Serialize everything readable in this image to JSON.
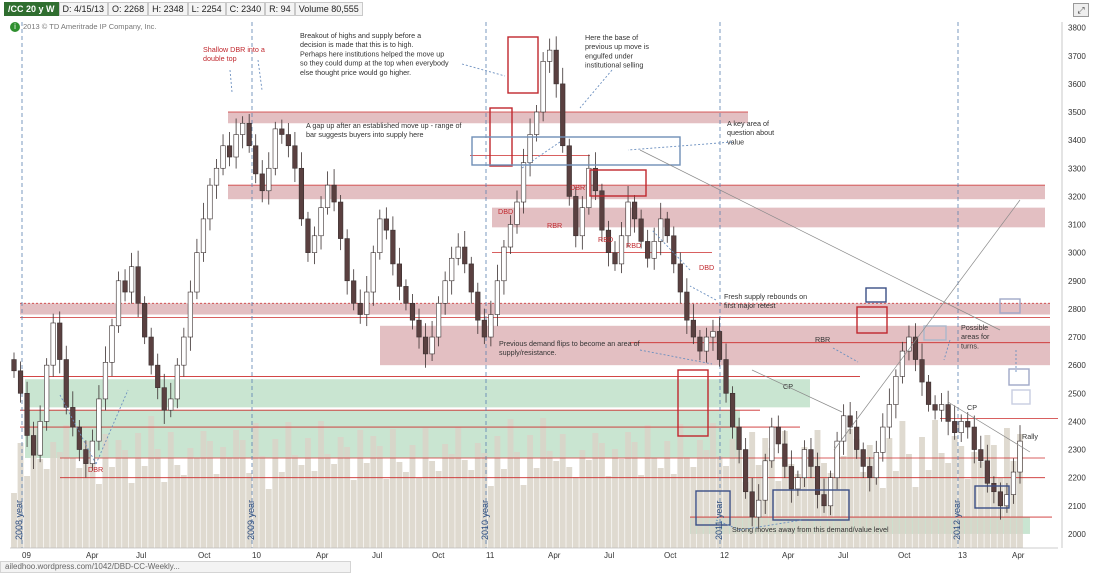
{
  "header": {
    "symbol": "/CC 20 y W",
    "date": "D: 4/15/13",
    "open": "O: 2268",
    "high": "H: 2348",
    "low": "L: 2254",
    "close": "C: 2340",
    "range": "R: 94",
    "volume": "Volume  80,555"
  },
  "copyright": "2013 © TD Ameritrade IP Company, Inc.",
  "footer_url": "ailedhoo.wordpress.com/1042/DBD-CC-Weekly...",
  "chart_data": {
    "type": "candlestick",
    "title": "",
    "y_range": [
      1950,
      3820
    ],
    "y_ticks": [
      2000,
      2100,
      2200,
      2300,
      2400,
      2500,
      2600,
      2700,
      2800,
      2900,
      3000,
      3100,
      3200,
      3300,
      3400,
      3500,
      3600,
      3700,
      3800
    ],
    "x_ticks": [
      "09",
      "Apr",
      "Jul",
      "Oct",
      "10",
      "Apr",
      "Jul",
      "Oct",
      "11",
      "Apr",
      "Jul",
      "Oct",
      "12",
      "Apr",
      "Jul",
      "Oct",
      "13",
      "Apr"
    ],
    "year_labels": [
      "2008 year",
      "2009 year",
      "2010 year",
      "2011 year",
      "2012 year"
    ],
    "zones": [
      {
        "label": "supply",
        "low": 3460,
        "high": 3500,
        "color": "#d9a9ae"
      },
      {
        "label": "supply",
        "low": 3190,
        "high": 3240,
        "color": "#d9a9ae"
      },
      {
        "label": "supply",
        "low": 3090,
        "high": 3160,
        "color": "#d9a9ae"
      },
      {
        "label": "supply",
        "low": 2780,
        "high": 2820,
        "color": "#d9a9ae"
      },
      {
        "label": "supply",
        "low": 2600,
        "high": 2740,
        "color": "#d9a9ae"
      },
      {
        "label": "demand",
        "low": 2450,
        "high": 2550,
        "color": "#b7dcc2"
      },
      {
        "label": "demand",
        "low": 2270,
        "high": 2440,
        "color": "#b7dcc2"
      },
      {
        "label": "demand",
        "low": 2000,
        "high": 2060,
        "color": "#b7dcc2"
      }
    ],
    "annotations": [
      "Shallow DBR into a double top",
      "Breakout of highs and supply before a decision is made that this is to high.  Perhaps here institutions helped the move up so they could dump at the top when everybody else thought price would go higher.",
      "Here the base of previous up move is engulfed under institutional selling",
      "A gap up after an established move up - range of bar suggests buyers into supply here",
      "A key area of question about value",
      "DBR",
      "DBD",
      "RBR",
      "RBD",
      "RBD",
      "DBD",
      "Fresh supply rebounds on first major retest",
      "Previous demand flips to become an area of supply/resistance.",
      "RBR",
      "CP",
      "CP",
      "Possible areas for turns.",
      "Rally",
      "Strong moves away from this demand/value level",
      "DBR"
    ],
    "series": [
      {
        "name": "",
        "values": [
          2580,
          2500,
          2350,
          2280,
          2400,
          2600,
          2750,
          2620,
          2450,
          2380,
          2300,
          2250,
          2330,
          2480,
          2610,
          2740,
          2900,
          2860,
          2950,
          2820,
          2700,
          2600,
          2520,
          2440,
          2480,
          2600,
          2700,
          2860,
          3000,
          3120,
          3240,
          3300,
          3380,
          3340,
          3420,
          3460,
          3380,
          3280,
          3220,
          3300,
          3440,
          3420,
          3380,
          3300,
          3120,
          3000,
          3060,
          3160,
          3240,
          3180,
          3050,
          2900,
          2820,
          2780,
          2860,
          3000,
          3120,
          3080,
          2960,
          2880,
          2820,
          2760,
          2700,
          2640,
          2700,
          2820,
          2900,
          2980,
          3020,
          2960,
          2860,
          2760,
          2700,
          2780,
          2900,
          3020,
          3100,
          3180,
          3320,
          3420,
          3500,
          3680,
          3720,
          3600,
          3380,
          3200,
          3060,
          3160,
          3300,
          3220,
          3080,
          3000,
          2960,
          3060,
          3180,
          3120,
          3040,
          2980,
          3040,
          3120,
          3060,
          2960,
          2860,
          2760,
          2700,
          2650,
          2700,
          2720,
          2620,
          2500,
          2380,
          2300,
          2150,
          2060,
          2120,
          2260,
          2380,
          2320,
          2240,
          2160,
          2200,
          2300,
          2240,
          2140,
          2100,
          2200,
          2330,
          2420,
          2380,
          2300,
          2240,
          2200,
          2290,
          2380,
          2460,
          2560,
          2650,
          2700,
          2620,
          2540,
          2460,
          2440,
          2460,
          2400,
          2360,
          2400,
          2380,
          2300,
          2260,
          2180,
          2150,
          2100,
          2140,
          2220,
          2330
        ]
      }
    ]
  }
}
